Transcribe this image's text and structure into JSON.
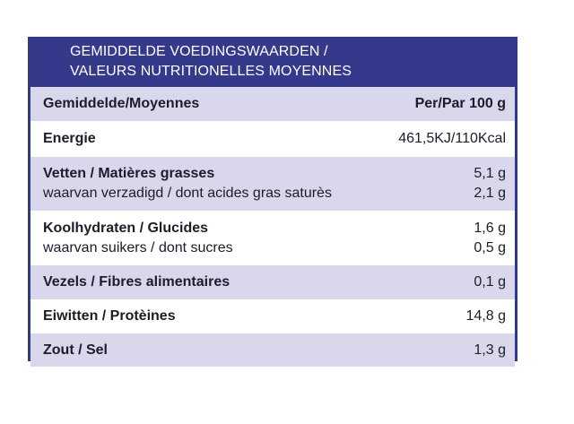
{
  "title": {
    "line1": "GEMIDDELDE VOEDINGSWAARDEN /",
    "line2": "VALEURS NUTRITIONELLES MOYENNES"
  },
  "header": {
    "label": "Gemiddelde/Moyennes",
    "unit": "Per/Par 100 g"
  },
  "rows": {
    "energy": {
      "label": "Energie",
      "value": "461,5KJ/110Kcal"
    },
    "fat": {
      "label": "Vetten / Matières grasses",
      "value": "5,1 g",
      "sub_label": "waarvan verzadigd / dont acides gras saturès",
      "sub_value": "2,1 g"
    },
    "carbs": {
      "label": "Koolhydraten / Glucides",
      "value": "1,6 g",
      "sub_label": "waarvan suikers / dont sucres",
      "sub_value": "0,5 g"
    },
    "fibre": {
      "label": "Vezels / Fibres alimentaires",
      "value": "0,1 g"
    },
    "protein": {
      "label": "Eiwitten / Protèines",
      "value": "14,8 g"
    },
    "salt": {
      "label": "Zout / Sel",
      "value": "1,3 g"
    }
  },
  "colors": {
    "frame": "#34398c",
    "shaded_row": "#d9d7eb",
    "white_row": "#ffffff",
    "title_text": "#ffffff"
  }
}
